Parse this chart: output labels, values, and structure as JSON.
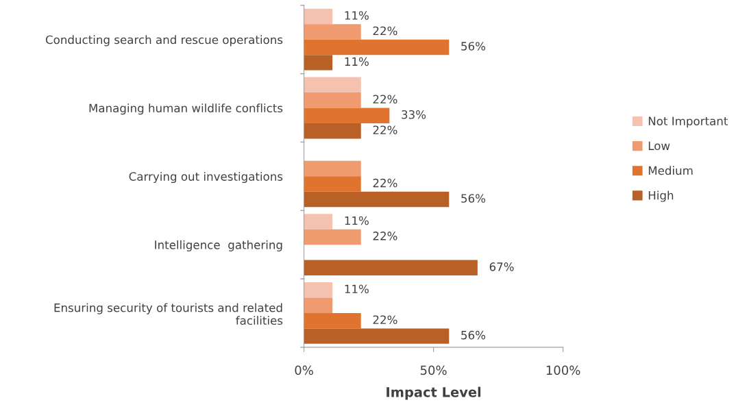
{
  "chart_data": {
    "type": "bar",
    "orientation": "horizontal",
    "xlabel": "Impact Level",
    "categories": [
      "Conducting search and rescue operations",
      "Managing human wildlife conflicts",
      "Carrying out investigations",
      "Intelligence  gathering",
      "Ensuring security of tourists and related\nfacilities"
    ],
    "series": [
      {
        "name": "Not Important",
        "color": "#f5c2b0",
        "values": [
          11,
          22,
          null,
          11,
          11
        ],
        "value_labels": [
          "11%",
          null,
          null,
          "11%",
          "11%"
        ]
      },
      {
        "name": "Low",
        "color": "#f09a70",
        "values": [
          22,
          22,
          22,
          22,
          11
        ],
        "value_labels": [
          "22%",
          "22%",
          null,
          "22%",
          null
        ]
      },
      {
        "name": "Medium",
        "color": "#e0742e",
        "values": [
          56,
          33,
          22,
          null,
          22
        ],
        "value_labels": [
          "56%",
          "33%",
          "22%",
          null,
          "22%"
        ]
      },
      {
        "name": "High",
        "color": "#b86025",
        "values": [
          11,
          22,
          56,
          67,
          56
        ],
        "value_labels": [
          "11%",
          "22%",
          "56%",
          "67%",
          "56%"
        ]
      }
    ],
    "xlim": [
      0,
      100
    ],
    "xticks": [
      {
        "value": 0,
        "label": "0%"
      },
      {
        "value": 50,
        "label": "50%"
      },
      {
        "value": 100,
        "label": "100%"
      }
    ],
    "grid": false,
    "legend": "right"
  }
}
